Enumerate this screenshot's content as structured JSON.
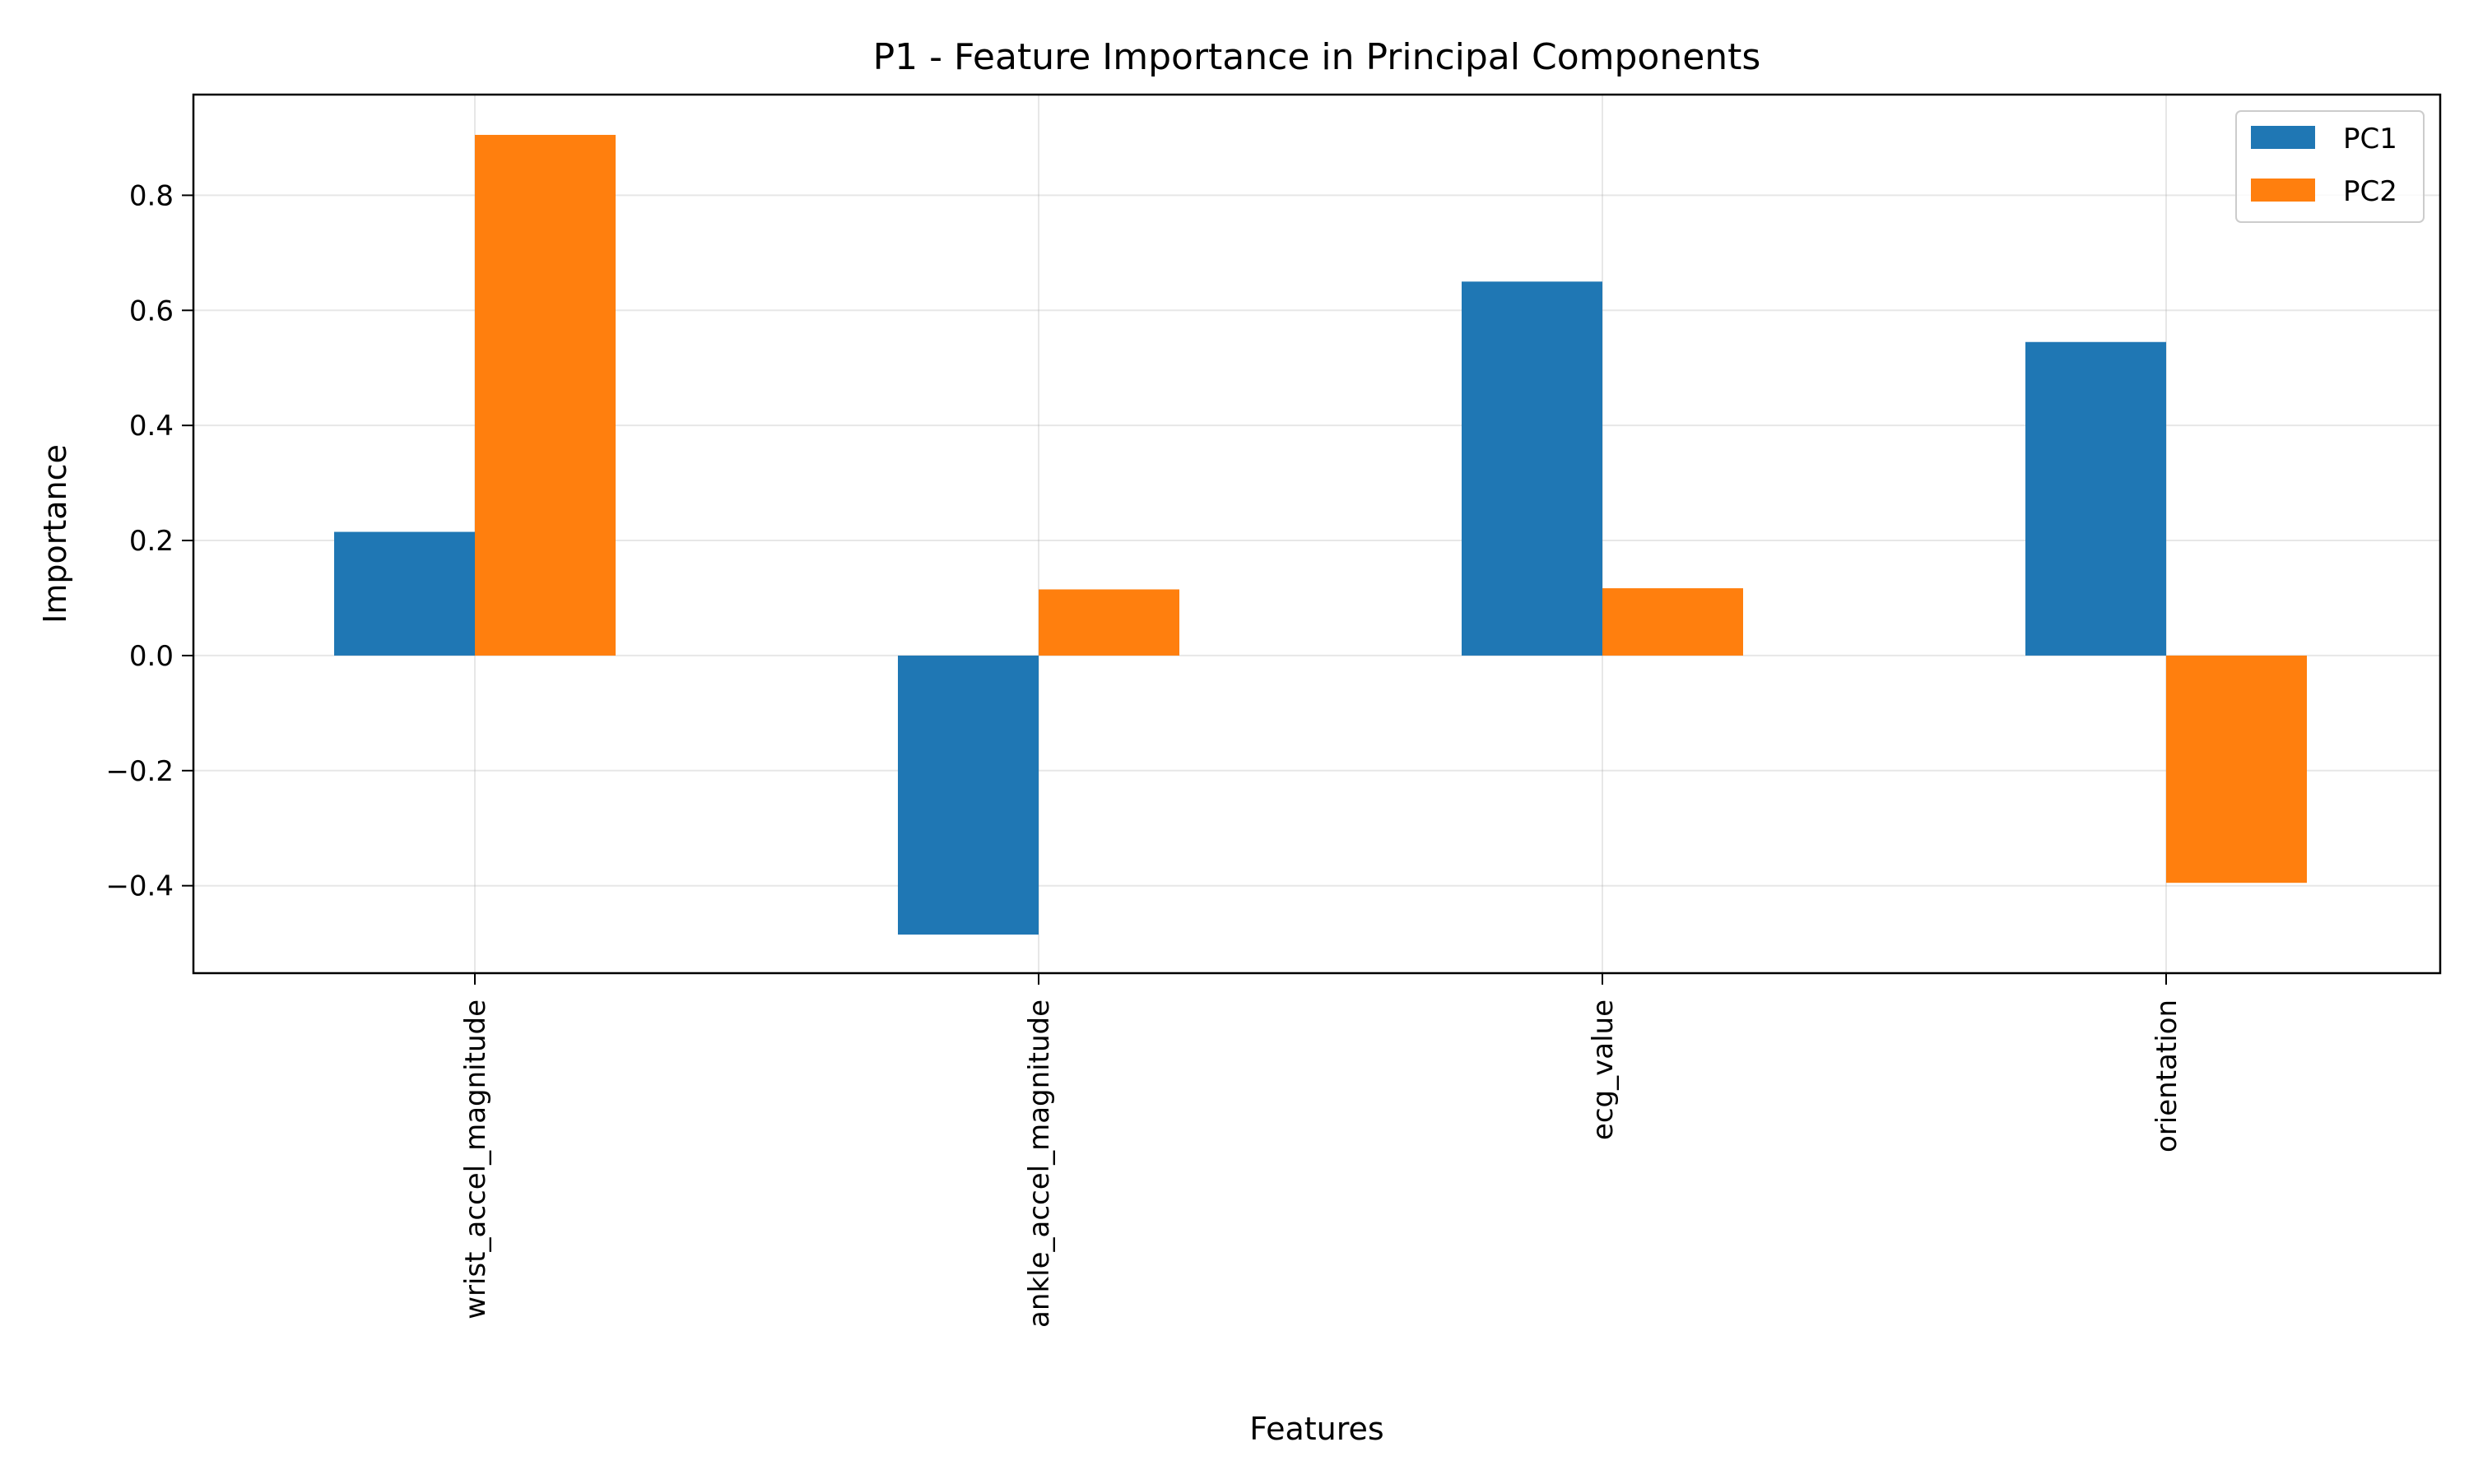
{
  "chart_data": {
    "type": "bar",
    "title": "P1 - Feature Importance in Principal Components",
    "xlabel": "Features",
    "ylabel": "Importance",
    "categories": [
      "wrist_accel_magnitude",
      "ankle_accel_magnitude",
      "ecg_value",
      "orientation"
    ],
    "series": [
      {
        "name": "PC1",
        "color": "#1f77b4",
        "values": [
          0.215,
          -0.485,
          0.65,
          0.545
        ]
      },
      {
        "name": "PC2",
        "color": "#ff7f0e",
        "values": [
          0.905,
          0.115,
          0.117,
          -0.395
        ]
      }
    ],
    "ylim": [
      -0.552,
      0.975
    ],
    "yticks": [
      -0.4,
      -0.2,
      0.0,
      0.2,
      0.4,
      0.6,
      0.8
    ],
    "ytick_labels": [
      "−0.4",
      "−0.2",
      "0.0",
      "0.2",
      "0.4",
      "0.6",
      "0.8"
    ],
    "grid": true,
    "legend_position": "top-right"
  }
}
